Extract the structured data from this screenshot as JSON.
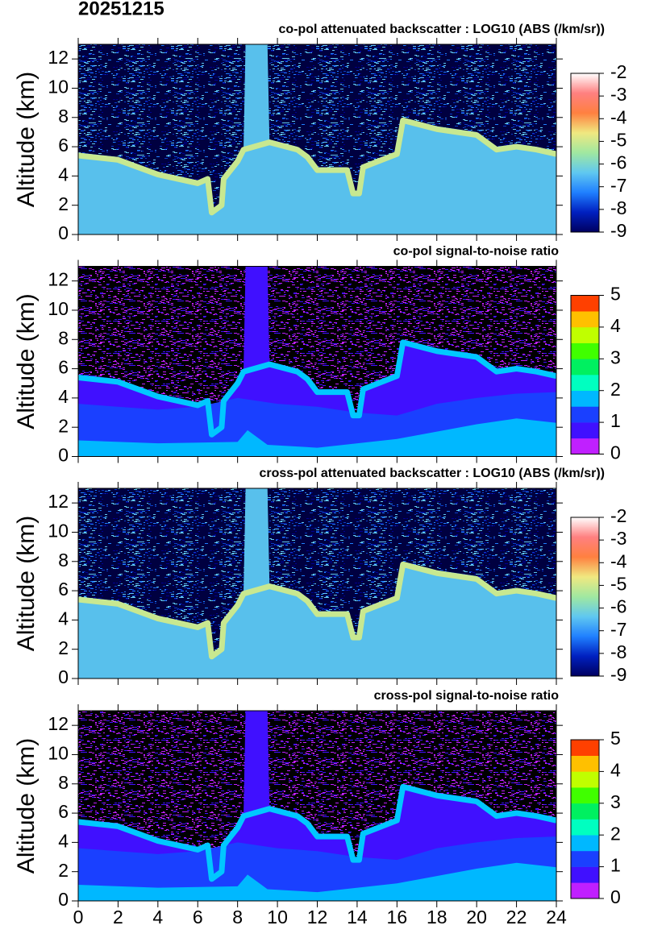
{
  "date_title": "20251215",
  "chart_data": [
    {
      "type": "heatmap",
      "title": "co-pol attenuated backscatter : LOG10 (ABS (/km/sr))",
      "y_label": "Altitude (km)",
      "xlim": [
        0,
        24
      ],
      "xticks": [
        0,
        2,
        4,
        6,
        8,
        10,
        12,
        14,
        16,
        18,
        20,
        22,
        24
      ],
      "ylim": [
        0,
        13
      ],
      "yticks": [
        0,
        2,
        4,
        6,
        8,
        10,
        12
      ],
      "colorbar": {
        "lim": [
          -9,
          -2
        ],
        "ticks": [
          -9,
          -8,
          -7,
          -6,
          -5,
          -4,
          -3,
          -2
        ],
        "continuous": true,
        "colors": [
          "#000060",
          "#0020c0",
          "#2080ff",
          "#60c8f0",
          "#a0e8a0",
          "#f0e880",
          "#ff8040",
          "#ff8080",
          "#ffffff"
        ]
      }
    },
    {
      "type": "heatmap",
      "title": "co-pol signal-to-noise ratio",
      "y_label": "Altitude (km)",
      "xlim": [
        0,
        24
      ],
      "xticks": [
        0,
        2,
        4,
        6,
        8,
        10,
        12,
        14,
        16,
        18,
        20,
        22,
        24
      ],
      "ylim": [
        0,
        13
      ],
      "yticks": [
        0,
        2,
        4,
        6,
        8,
        10,
        12
      ],
      "colorbar": {
        "lim": [
          0,
          5
        ],
        "ticks": [
          0,
          1,
          2,
          3,
          4,
          5
        ],
        "continuous": false,
        "colors": [
          "#c020ff",
          "#4010ff",
          "#1a40ff",
          "#00b8ff",
          "#00ffc0",
          "#00f060",
          "#40ff00",
          "#c0ff00",
          "#ffc000",
          "#ff4000"
        ]
      }
    },
    {
      "type": "heatmap",
      "title": "cross-pol attenuated backscatter : LOG10 (ABS (/km/sr))",
      "y_label": "Altitude (km)",
      "xlim": [
        0,
        24
      ],
      "xticks": [
        0,
        2,
        4,
        6,
        8,
        10,
        12,
        14,
        16,
        18,
        20,
        22,
        24
      ],
      "ylim": [
        0,
        13
      ],
      "yticks": [
        0,
        2,
        4,
        6,
        8,
        10,
        12
      ],
      "colorbar": {
        "lim": [
          -9,
          -2
        ],
        "ticks": [
          -9,
          -8,
          -7,
          -6,
          -5,
          -4,
          -3,
          -2
        ],
        "continuous": true,
        "colors": [
          "#000060",
          "#0020c0",
          "#2080ff",
          "#60c8f0",
          "#a0e8a0",
          "#f0e880",
          "#ff8040",
          "#ff8080",
          "#ffffff"
        ]
      }
    },
    {
      "type": "heatmap",
      "title": "cross-pol signal-to-noise ratio",
      "y_label": "Altitude (km)",
      "xlim": [
        0,
        24
      ],
      "xticks": [
        0,
        2,
        4,
        6,
        8,
        10,
        12,
        14,
        16,
        18,
        20,
        22,
        24
      ],
      "xtick_labels_shown": true,
      "ylim": [
        0,
        13
      ],
      "yticks": [
        0,
        2,
        4,
        6,
        8,
        10,
        12
      ],
      "colorbar": {
        "lim": [
          0,
          5
        ],
        "ticks": [
          0,
          1,
          2,
          3,
          4,
          5
        ],
        "continuous": false,
        "colors": [
          "#c020ff",
          "#4010ff",
          "#1a40ff",
          "#00b8ff",
          "#00ffc0",
          "#00f060",
          "#40ff00",
          "#c0ff00",
          "#ffc000",
          "#ff4000"
        ]
      }
    }
  ]
}
